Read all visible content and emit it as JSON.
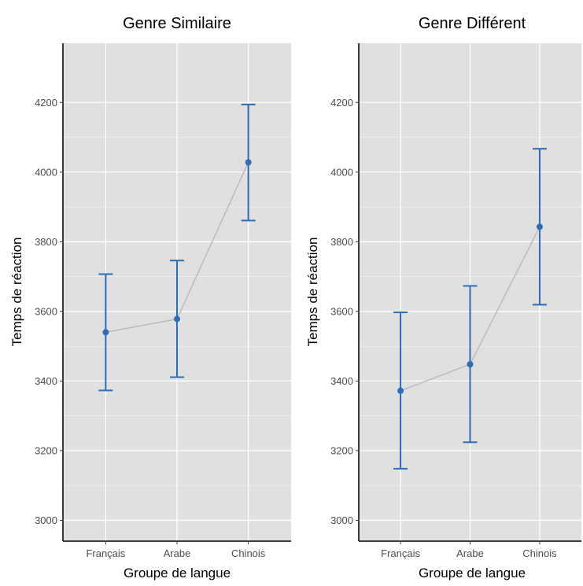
{
  "chart_data": [
    {
      "type": "line",
      "title": "Genre Similaire",
      "xlabel": "Groupe de langue",
      "ylabel": "Temps de réaction",
      "categories": [
        "Français",
        "Arabe",
        "Chinois"
      ],
      "series": [
        {
          "values": [
            3540,
            3578,
            4028
          ],
          "error_low": [
            3373,
            3411,
            3861
          ],
          "error_high": [
            3707,
            3746,
            4194
          ]
        }
      ],
      "ylim": [
        2940,
        4370
      ],
      "yticks": [
        3000,
        3200,
        3400,
        3600,
        3800,
        4000,
        4200
      ],
      "grid": true,
      "colors": {
        "points": "#2e6db4",
        "line": "#bdbdbd",
        "panel": "#e0e0e0"
      }
    },
    {
      "type": "line",
      "title": "Genre Différent",
      "xlabel": "Groupe de langue",
      "ylabel": "Temps de réaction",
      "categories": [
        "Français",
        "Arabe",
        "Chinois"
      ],
      "series": [
        {
          "values": [
            3372,
            3448,
            3843
          ],
          "error_low": [
            3148,
            3224,
            3619
          ],
          "error_high": [
            3597,
            3673,
            4067
          ]
        }
      ],
      "ylim": [
        2940,
        4370
      ],
      "yticks": [
        3000,
        3200,
        3400,
        3600,
        3800,
        4000,
        4200
      ],
      "grid": true,
      "colors": {
        "points": "#2e6db4",
        "line": "#bdbdbd",
        "panel": "#e0e0e0"
      }
    }
  ]
}
